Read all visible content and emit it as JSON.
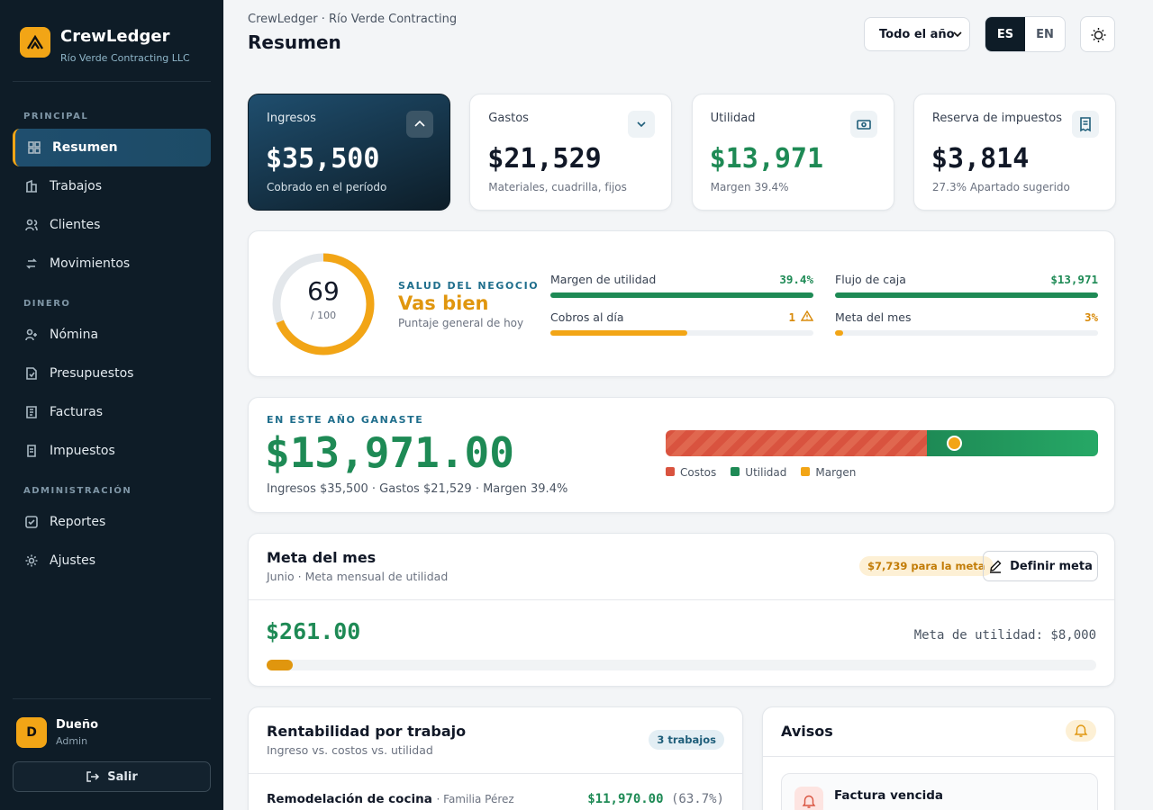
{
  "sidebar": {
    "brand": "CrewLedger",
    "company": "Río Verde Contracting LLC",
    "sections": [
      {
        "title": "PRINCIPAL",
        "items": [
          "Resumen",
          "Trabajos",
          "Clientes",
          "Movimientos"
        ]
      },
      {
        "title": "DINERO",
        "items": [
          "Nómina",
          "Presupuestos",
          "Facturas",
          "Impuestos"
        ]
      },
      {
        "title": "ADMINISTRACIÓN",
        "items": [
          "Reportes",
          "Ajustes"
        ]
      }
    ],
    "user": {
      "initial": "D",
      "name": "Dueño",
      "role": "Admin"
    },
    "logout": "Salir"
  },
  "header": {
    "breadcrumb": "CrewLedger · Río Verde Contracting",
    "title": "Resumen",
    "period": "Todo el año",
    "languages": [
      "ES",
      "EN"
    ]
  },
  "kpis": [
    {
      "label": "Ingresos",
      "value": "$35,500",
      "note": "Cobrado en el período"
    },
    {
      "label": "Gastos",
      "value": "$21,529",
      "note": "Materiales, cuadrilla, fijos"
    },
    {
      "label": "Utilidad",
      "value": "$13,971",
      "note": "Margen 39.4%"
    },
    {
      "label": "Reserva de impuestos",
      "value": "$3,814",
      "note": "27.3% Apartado sugerido"
    }
  ],
  "health": {
    "score": "69",
    "max": "/ 100",
    "eyebrow": "SALUD DEL NEGOCIO",
    "status": "Vas bien",
    "note": "Puntaje general de hoy",
    "metrics": [
      {
        "label": "Margen de utilidad",
        "value": "39.4%"
      },
      {
        "label": "Flujo de caja",
        "value": "$13,971"
      },
      {
        "label": "Cobros al día",
        "value": "1"
      },
      {
        "label": "Meta del mes",
        "value": "3%"
      }
    ]
  },
  "earned": {
    "eyebrow": "EN ESTE AÑO GANASTE",
    "amount": "$13,971.00",
    "detail": "Ingresos $35,500 · Gastos $21,529 · Margen 39.4%",
    "legend": [
      "Costos",
      "Utilidad",
      "Margen"
    ]
  },
  "goal": {
    "title": "Meta del mes",
    "subtitle": "Junio · Meta mensual de utilidad",
    "badge": "$7,739 para la meta",
    "button": "Definir meta",
    "amount": "$261.00",
    "target": "Meta de utilidad: $8,000"
  },
  "jobs": {
    "title": "Rentabilidad por trabajo",
    "subtitle": "Ingreso vs. costos vs. utilidad",
    "badge": "3 trabajos",
    "rows": [
      {
        "name": "Remodelación de cocina",
        "client": "· Familia Pérez",
        "profit": "$11,970.00",
        "pct": "(63.7%)"
      }
    ]
  },
  "alerts": {
    "title": "Avisos",
    "items": [
      {
        "title": "Factura vencida"
      }
    ]
  }
}
